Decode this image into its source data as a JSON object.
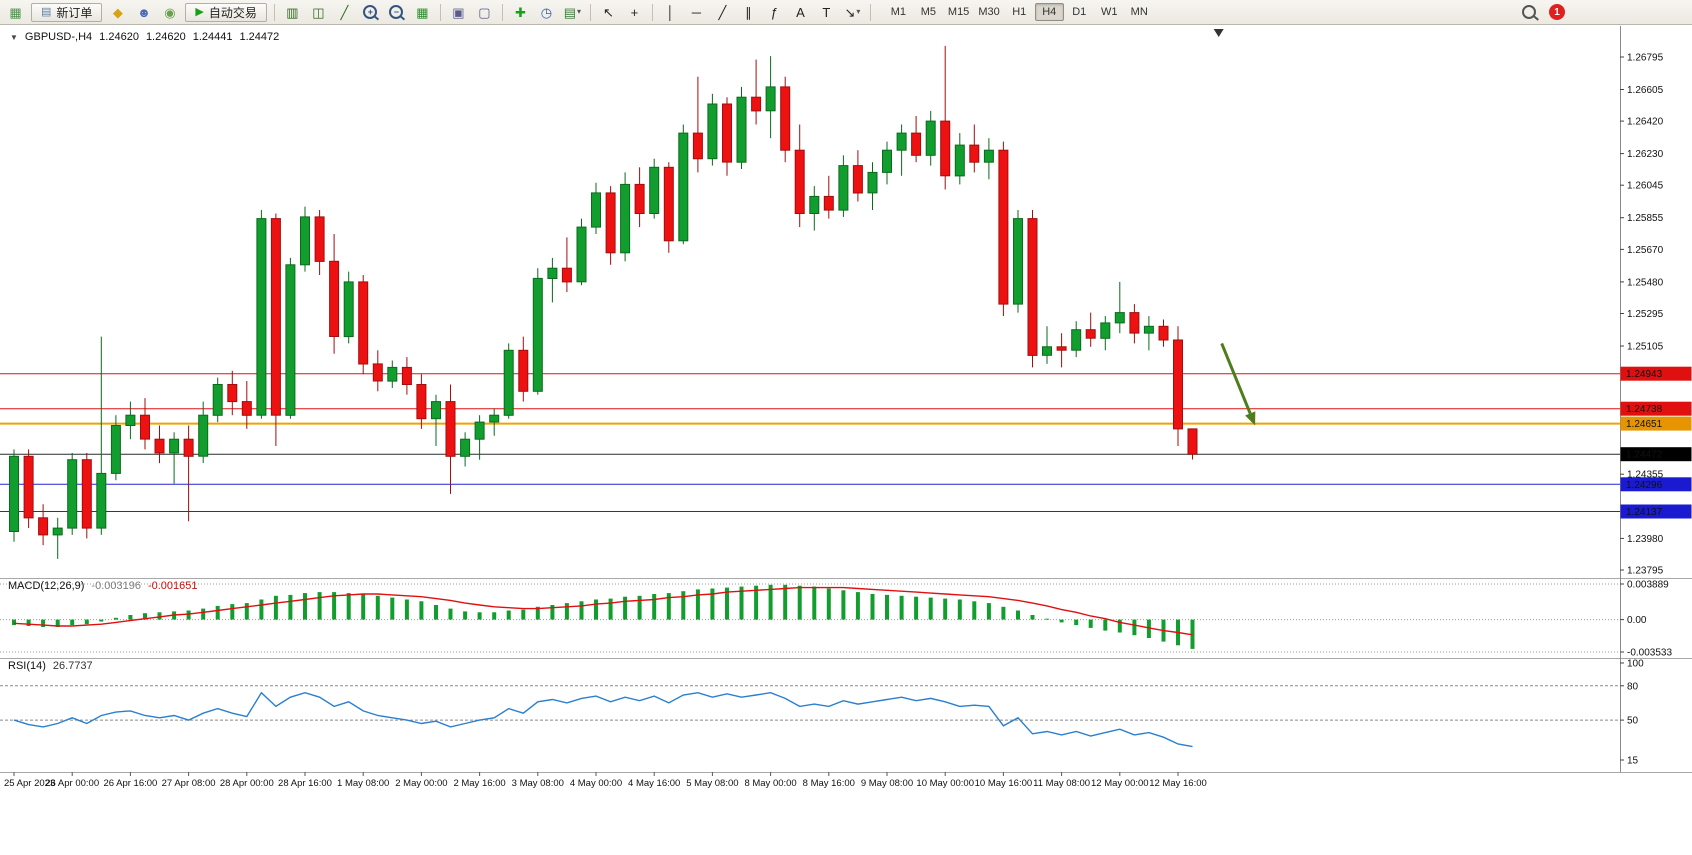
{
  "toolbar": {
    "items": [
      {
        "type": "icon",
        "name": "new-chart-icon",
        "glyph": "▦",
        "color": "#4f8f4f"
      },
      {
        "type": "button",
        "name": "new-order-button",
        "icon": {
          "name": "order-form-icon",
          "glyph": "▤",
          "color": "#5a7da0"
        },
        "label": "新订单"
      },
      {
        "type": "icon",
        "name": "market-watch-icon",
        "glyph": "◆",
        "color": "#d8a312"
      },
      {
        "type": "icon",
        "name": "navigator-icon",
        "glyph": "☻",
        "color": "#4a6ab8"
      },
      {
        "type": "icon",
        "name": "terminal-icon",
        "glyph": "◉",
        "color": "#69a04a"
      },
      {
        "type": "button",
        "name": "auto-trading-button",
        "icon": {
          "name": "play-icon",
          "glyph": "▶",
          "color": "#18a018"
        },
        "label": "自动交易"
      },
      {
        "type": "sep"
      },
      {
        "type": "icon",
        "name": "bar-chart-icon",
        "glyph": "▥",
        "color": "#33691e"
      },
      {
        "type": "icon",
        "name": "candlestick-chart-icon",
        "glyph": "◫",
        "color": "#33691e"
      },
      {
        "type": "icon",
        "name": "line-chart-icon",
        "glyph": "╱",
        "color": "#33691e"
      },
      {
        "type": "icon",
        "name": "zoom-in-icon",
        "mag": "+"
      },
      {
        "type": "icon",
        "name": "zoom-out-icon",
        "mag": "−"
      },
      {
        "type": "icon",
        "name": "tile-windows-icon",
        "glyph": "▦",
        "color": "#2e8b2e"
      },
      {
        "type": "sep"
      },
      {
        "type": "icon",
        "name": "auto-arrange-icon",
        "glyph": "▣",
        "color": "#5a5a8c"
      },
      {
        "type": "icon",
        "name": "cascade-windows-icon",
        "glyph": "▢",
        "color": "#5a5a8c"
      },
      {
        "type": "sep"
      },
      {
        "type": "icon",
        "name": "add-indicator-icon",
        "glyph": "✚",
        "color": "#18a018"
      },
      {
        "type": "icon",
        "name": "period-clock-icon",
        "glyph": "◷",
        "color": "#2a5fb0"
      },
      {
        "type": "icon",
        "name": "templates-icon",
        "glyph": "▤",
        "color": "#3a7a3a",
        "dropdown": true
      },
      {
        "type": "sep"
      },
      {
        "type": "icon",
        "name": "cursor-icon",
        "glyph": "↖",
        "color": "#222222"
      },
      {
        "type": "icon",
        "name": "crosshair-icon",
        "glyph": "+",
        "color": "#222222"
      },
      {
        "type": "sep"
      },
      {
        "type": "icon",
        "name": "vertical-line-icon",
        "glyph": "│",
        "color": "#222222"
      },
      {
        "type": "icon",
        "name": "horizontal-line-icon",
        "glyph": "─",
        "color": "#222222"
      },
      {
        "type": "icon",
        "name": "trendline-icon",
        "glyph": "╱",
        "color": "#222222"
      },
      {
        "type": "icon",
        "name": "equidistant-channel-icon",
        "glyph": "∥",
        "color": "#222222"
      },
      {
        "type": "icon",
        "name": "fibonacci-icon",
        "glyph": "ƒ",
        "color": "#222222"
      },
      {
        "type": "icon",
        "name": "text-icon",
        "glyph": "A",
        "color": "#222222"
      },
      {
        "type": "icon",
        "name": "text-label-icon",
        "glyph": "T",
        "color": "#222222"
      },
      {
        "type": "icon",
        "name": "arrows-icon",
        "glyph": "↘",
        "color": "#222222",
        "dropdown": true
      },
      {
        "type": "sep"
      }
    ],
    "timeframes": [
      "M1",
      "M5",
      "M15",
      "M30",
      "H1",
      "H4",
      "D1",
      "W1",
      "MN"
    ],
    "active_timeframe": "H4",
    "notification_count": "1"
  },
  "chart": {
    "collapse_glyph": "▼",
    "symbol": "GBPUSD-,H4",
    "open": "1.24620",
    "high": "1.24620",
    "low": "1.24441",
    "close": "1.24472"
  },
  "macd": {
    "label": "MACD(12,26,9)",
    "main_value": "-0.003196",
    "signal_value": "-0.001651",
    "axis_labels": [
      "0.003889",
      "0.00",
      "-0.003533"
    ]
  },
  "rsi": {
    "label": "RSI(14)",
    "value": "26.7737",
    "axis_labels": [
      "100",
      "80",
      "50",
      "15"
    ]
  },
  "chart_data": {
    "type": "candlestick",
    "symbol": "GBPUSD",
    "timeframe": "H4",
    "price_axis_ticks": [
      "1.26795",
      "1.26605",
      "1.26420",
      "1.26230",
      "1.26045",
      "1.25855",
      "1.25670",
      "1.25480",
      "1.25295",
      "1.25105",
      "1.24355",
      "1.23980",
      "1.23795"
    ],
    "time_labels": [
      "25 Apr 2023",
      "26 Apr 00:00",
      "26 Apr 16:00",
      "27 Apr 08:00",
      "28 Apr 00:00",
      "28 Apr 16:00",
      "1 May 08:00",
      "2 May 00:00",
      "2 May 16:00",
      "3 May 08:00",
      "4 May 00:00",
      "4 May 16:00",
      "5 May 08:00",
      "8 May 00:00",
      "8 May 16:00",
      "9 May 08:00",
      "10 May 00:00",
      "10 May 16:00",
      "11 May 08:00",
      "12 May 00:00",
      "12 May 16:00"
    ],
    "bars_per_label": 4,
    "candles": [
      [
        1.2402,
        1.245,
        1.2396,
        1.2446
      ],
      [
        1.2446,
        1.245,
        1.2404,
        1.241
      ],
      [
        1.241,
        1.2418,
        1.2394,
        1.24
      ],
      [
        1.24,
        1.241,
        1.2386,
        1.2404
      ],
      [
        1.2404,
        1.2448,
        1.24,
        1.2444
      ],
      [
        1.2444,
        1.2448,
        1.2398,
        1.2404
      ],
      [
        1.2404,
        1.2516,
        1.24,
        1.2436
      ],
      [
        1.2436,
        1.247,
        1.2432,
        1.2464
      ],
      [
        1.2464,
        1.2478,
        1.2456,
        1.247
      ],
      [
        1.247,
        1.248,
        1.245,
        1.2456
      ],
      [
        1.2456,
        1.2464,
        1.2442,
        1.2448
      ],
      [
        1.2448,
        1.246,
        1.243,
        1.2456
      ],
      [
        1.2456,
        1.2464,
        1.2408,
        1.2446
      ],
      [
        1.2446,
        1.2478,
        1.2442,
        1.247
      ],
      [
        1.247,
        1.2492,
        1.2466,
        1.2488
      ],
      [
        1.2488,
        1.2496,
        1.247,
        1.2478
      ],
      [
        1.2478,
        1.249,
        1.2462,
        1.247
      ],
      [
        1.247,
        1.259,
        1.2468,
        1.2585
      ],
      [
        1.2585,
        1.2588,
        1.2452,
        1.247
      ],
      [
        1.247,
        1.2562,
        1.2468,
        1.2558
      ],
      [
        1.2558,
        1.2592,
        1.2554,
        1.2586
      ],
      [
        1.2586,
        1.259,
        1.2552,
        1.256
      ],
      [
        1.256,
        1.2576,
        1.2506,
        1.2516
      ],
      [
        1.2516,
        1.2554,
        1.2512,
        1.2548
      ],
      [
        1.2548,
        1.2552,
        1.2494,
        1.25
      ],
      [
        1.25,
        1.2508,
        1.2484,
        1.249
      ],
      [
        1.249,
        1.2502,
        1.2486,
        1.2498
      ],
      [
        1.2498,
        1.2504,
        1.2482,
        1.2488
      ],
      [
        1.2488,
        1.2494,
        1.2462,
        1.2468
      ],
      [
        1.2468,
        1.2482,
        1.2452,
        1.2478
      ],
      [
        1.2478,
        1.2488,
        1.2424,
        1.2446
      ],
      [
        1.2446,
        1.246,
        1.244,
        1.2456
      ],
      [
        1.2456,
        1.247,
        1.2444,
        1.2466
      ],
      [
        1.2466,
        1.2474,
        1.2458,
        1.247
      ],
      [
        1.247,
        1.2512,
        1.2468,
        1.2508
      ],
      [
        1.2508,
        1.2516,
        1.2478,
        1.2484
      ],
      [
        1.2484,
        1.2556,
        1.2482,
        1.255
      ],
      [
        1.255,
        1.2562,
        1.2536,
        1.2556
      ],
      [
        1.2556,
        1.2574,
        1.2542,
        1.2548
      ],
      [
        1.2548,
        1.2585,
        1.2546,
        1.258
      ],
      [
        1.258,
        1.2606,
        1.2576,
        1.26
      ],
      [
        1.26,
        1.2604,
        1.2558,
        1.2565
      ],
      [
        1.2565,
        1.2612,
        1.256,
        1.2605
      ],
      [
        1.2605,
        1.2615,
        1.258,
        1.2588
      ],
      [
        1.2588,
        1.262,
        1.2585,
        1.2615
      ],
      [
        1.2615,
        1.2618,
        1.2565,
        1.2572
      ],
      [
        1.2572,
        1.264,
        1.257,
        1.2635
      ],
      [
        1.2635,
        1.2668,
        1.2612,
        1.262
      ],
      [
        1.262,
        1.2658,
        1.2616,
        1.2652
      ],
      [
        1.2652,
        1.2656,
        1.261,
        1.2618
      ],
      [
        1.2618,
        1.2662,
        1.2614,
        1.2656
      ],
      [
        1.2656,
        1.2678,
        1.264,
        1.2648
      ],
      [
        1.2648,
        1.268,
        1.2632,
        1.2662
      ],
      [
        1.2662,
        1.2668,
        1.2618,
        1.2625
      ],
      [
        1.2625,
        1.264,
        1.258,
        1.2588
      ],
      [
        1.2588,
        1.2604,
        1.2578,
        1.2598
      ],
      [
        1.2598,
        1.261,
        1.2585,
        1.259
      ],
      [
        1.259,
        1.2622,
        1.2586,
        1.2616
      ],
      [
        1.2616,
        1.2625,
        1.2595,
        1.26
      ],
      [
        1.26,
        1.2618,
        1.259,
        1.2612
      ],
      [
        1.2612,
        1.263,
        1.2605,
        1.2625
      ],
      [
        1.2625,
        1.264,
        1.261,
        1.2635
      ],
      [
        1.2635,
        1.2645,
        1.2618,
        1.2622
      ],
      [
        1.2622,
        1.2648,
        1.2616,
        1.2642
      ],
      [
        1.2642,
        1.2686,
        1.2602,
        1.261
      ],
      [
        1.261,
        1.2635,
        1.2605,
        1.2628
      ],
      [
        1.2628,
        1.264,
        1.2612,
        1.2618
      ],
      [
        1.2618,
        1.2632,
        1.2608,
        1.2625
      ],
      [
        1.2625,
        1.263,
        1.2528,
        1.2535
      ],
      [
        1.2535,
        1.259,
        1.253,
        1.2585
      ],
      [
        1.2585,
        1.259,
        1.2498,
        1.2505
      ],
      [
        1.2505,
        1.2522,
        1.25,
        1.251
      ],
      [
        1.251,
        1.2518,
        1.2498,
        1.2508
      ],
      [
        1.2508,
        1.2525,
        1.2504,
        1.252
      ],
      [
        1.252,
        1.253,
        1.251,
        1.2515
      ],
      [
        1.2515,
        1.2528,
        1.2508,
        1.2524
      ],
      [
        1.2524,
        1.2548,
        1.2518,
        1.253
      ],
      [
        1.253,
        1.2535,
        1.2512,
        1.2518
      ],
      [
        1.2518,
        1.2528,
        1.2508,
        1.2522
      ],
      [
        1.2522,
        1.2526,
        1.251,
        1.2514
      ],
      [
        1.2514,
        1.2522,
        1.2452,
        1.2462
      ],
      [
        1.2462,
        1.2462,
        1.24441,
        1.24472
      ]
    ],
    "levels": [
      {
        "price": 1.24943,
        "color": "#e01010",
        "tag_bg": "#e01010",
        "label": "1.24943",
        "kind": "resistance",
        "width": 1
      },
      {
        "price": 1.24738,
        "color": "#e01010",
        "tag_bg": "#e01010",
        "label": "1.24738",
        "kind": "resistance",
        "width": 1
      },
      {
        "price": 1.24651,
        "color": "#efa300",
        "tag_bg": "#e69500",
        "label": "1.24651",
        "kind": "pivot",
        "width": 2
      },
      {
        "price": 1.24472,
        "color": "#2b2b2b",
        "tag_bg": "#000000",
        "label": "1.24472",
        "kind": "current-price",
        "width": 1
      },
      {
        "price": 1.24296,
        "color": "#2424d8",
        "tag_bg": "#1a1ad0",
        "label": "1.24296",
        "kind": "support",
        "width": 1
      },
      {
        "price": 1.24137,
        "color": "#2424d8",
        "tag_bg": "#1a1ad0",
        "label": "1.24137",
        "kind": "support",
        "width": 1
      }
    ],
    "macd": {
      "range": [
        -0.003533,
        0.003889
      ],
      "main": [
        -0.0006,
        -0.0007,
        -0.0008,
        -0.0008,
        -0.0006,
        -0.0005,
        -0.0002,
        0.0002,
        0.0005,
        0.0007,
        0.0008,
        0.0009,
        0.001,
        0.0012,
        0.0015,
        0.0017,
        0.0018,
        0.0022,
        0.0026,
        0.0027,
        0.0029,
        0.003,
        0.003,
        0.0029,
        0.0028,
        0.0026,
        0.0024,
        0.0022,
        0.002,
        0.0016,
        0.0012,
        0.0009,
        0.0008,
        0.0008,
        0.001,
        0.0011,
        0.0014,
        0.0016,
        0.0018,
        0.002,
        0.0022,
        0.0023,
        0.0025,
        0.0026,
        0.0028,
        0.0029,
        0.0031,
        0.0033,
        0.0034,
        0.0035,
        0.0036,
        0.0037,
        0.0038,
        0.0038,
        0.0037,
        0.0036,
        0.0034,
        0.0032,
        0.003,
        0.0028,
        0.0027,
        0.0026,
        0.0025,
        0.0024,
        0.0023,
        0.0022,
        0.002,
        0.0018,
        0.0014,
        0.001,
        0.0005,
        0.0001,
        -0.0003,
        -0.0006,
        -0.0009,
        -0.0012,
        -0.0014,
        -0.0017,
        -0.002,
        -0.0024,
        -0.0028,
        -0.003196
      ],
      "signal": [
        -0.0004,
        -0.0005,
        -0.0006,
        -0.0007,
        -0.0007,
        -0.0006,
        -0.0005,
        -0.0003,
        -0.0001,
        0.0001,
        0.0003,
        0.0005,
        0.0006,
        0.0008,
        0.001,
        0.0012,
        0.0014,
        0.0016,
        0.0018,
        0.002,
        0.0022,
        0.0024,
        0.0026,
        0.0027,
        0.0028,
        0.0028,
        0.0027,
        0.0026,
        0.0025,
        0.0023,
        0.0021,
        0.0018,
        0.0016,
        0.0014,
        0.0013,
        0.0012,
        0.0012,
        0.0013,
        0.0014,
        0.0015,
        0.0017,
        0.0018,
        0.002,
        0.0021,
        0.0022,
        0.0024,
        0.0025,
        0.0027,
        0.0028,
        0.003,
        0.0031,
        0.0032,
        0.0033,
        0.0034,
        0.0035,
        0.0035,
        0.0035,
        0.0035,
        0.0034,
        0.0033,
        0.0032,
        0.0031,
        0.003,
        0.0029,
        0.0028,
        0.0027,
        0.0026,
        0.0025,
        0.0023,
        0.0021,
        0.0018,
        0.0015,
        0.0011,
        0.0008,
        0.0004,
        0.0001,
        -0.0003,
        -0.0006,
        -0.0009,
        -0.0012,
        -0.0014,
        -0.001651
      ]
    },
    "rsi": {
      "range": [
        15,
        100
      ],
      "levels": [
        80,
        50
      ],
      "values": [
        50,
        46,
        44,
        47,
        52,
        47,
        54,
        57,
        58,
        54,
        52,
        54,
        50,
        56,
        60,
        56,
        53,
        74,
        62,
        70,
        74,
        70,
        62,
        66,
        58,
        54,
        52,
        50,
        47,
        49,
        44,
        47,
        50,
        52,
        60,
        56,
        66,
        68,
        65,
        69,
        71,
        66,
        70,
        67,
        71,
        65,
        72,
        74,
        70,
        73,
        70,
        72,
        74,
        69,
        62,
        64,
        62,
        67,
        64,
        66,
        68,
        70,
        67,
        69,
        66,
        62,
        63,
        62,
        45,
        52,
        38,
        40,
        37,
        40,
        36,
        39,
        42,
        37,
        39,
        35,
        29,
        26.7737
      ]
    },
    "annotation_arrow": {
      "from_bar": 83,
      "from_price": 1.2512,
      "to_bar": 85.3,
      "to_price": 1.2464,
      "color": "#4e7d1e"
    },
    "colors": {
      "up": "#119e2e",
      "up_stroke": "#0a6b1d",
      "down": "#ee1111",
      "down_stroke": "#a30d0d",
      "macd_hist": "#119e2e",
      "macd_signal": "#e01010",
      "rsi_line": "#2a7fd0",
      "axis_text": "#111111"
    }
  }
}
